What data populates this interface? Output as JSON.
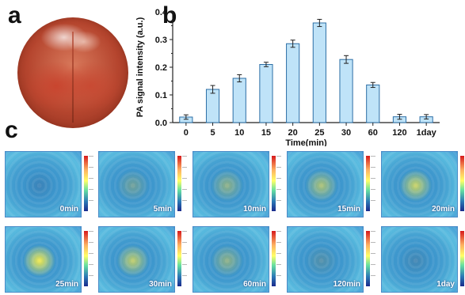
{
  "panels": {
    "a": "a",
    "b": "b",
    "c": "c"
  },
  "chart_data": {
    "type": "bar",
    "categories": [
      "0",
      "5",
      "10",
      "15",
      "20",
      "25",
      "30",
      "60",
      "120",
      "1day"
    ],
    "values": [
      0.02,
      0.12,
      0.16,
      0.21,
      0.285,
      0.36,
      0.228,
      0.136,
      0.021,
      0.021
    ],
    "errors": [
      0.008,
      0.014,
      0.013,
      0.008,
      0.013,
      0.013,
      0.014,
      0.009,
      0.009,
      0.008
    ],
    "xlabel": "Time(min)",
    "ylabel": "PA signal intensity (a.u.)",
    "ylim": [
      0,
      0.4
    ],
    "yticks": [
      "0.0",
      "0.1",
      "0.2",
      "0.3",
      "0.4"
    ],
    "bar_color": "#bfe3f8",
    "bar_edge_color": "#2d6fa6",
    "grid": false
  },
  "pa_images": [
    {
      "label": "0min",
      "intensity": 0.08
    },
    {
      "label": "5min",
      "intensity": 0.35
    },
    {
      "label": "10min",
      "intensity": 0.5
    },
    {
      "label": "15min",
      "intensity": 0.65
    },
    {
      "label": "20min",
      "intensity": 0.8
    },
    {
      "label": "25min",
      "intensity": 1.0
    },
    {
      "label": "30min",
      "intensity": 0.75
    },
    {
      "label": "60min",
      "intensity": 0.5
    },
    {
      "label": "120min",
      "intensity": 0.2
    },
    {
      "label": "1day",
      "intensity": 0.12
    }
  ],
  "colors": {
    "hot": "#f2e84a",
    "mid": "#5fc88a",
    "cold": "#2b78c0"
  }
}
